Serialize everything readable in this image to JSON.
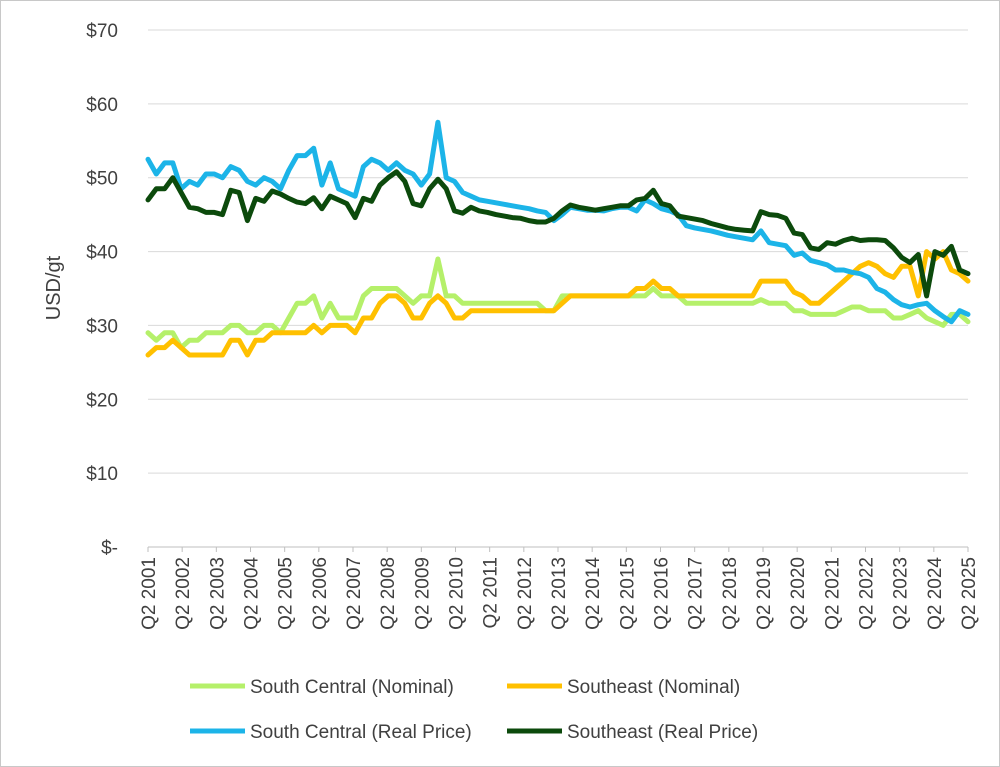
{
  "chart_data": {
    "type": "line",
    "title": "",
    "xlabel": "",
    "ylabel": "USD/gt",
    "ylim": [
      0,
      70
    ],
    "yticks": [
      {
        "value": 0,
        "label": "$-"
      },
      {
        "value": 10,
        "label": "$10"
      },
      {
        "value": 20,
        "label": "$20"
      },
      {
        "value": 30,
        "label": "$30"
      },
      {
        "value": 40,
        "label": "$40"
      },
      {
        "value": 50,
        "label": "$50"
      },
      {
        "value": 60,
        "label": "$60"
      },
      {
        "value": 70,
        "label": "$70"
      }
    ],
    "xtick_labels": [
      "Q2 2001",
      "Q2 2002",
      "Q2 2003",
      "Q2 2004",
      "Q2 2005",
      "Q2 2006",
      "Q2 2007",
      "Q2 2008",
      "Q2 2009",
      "Q2 2010",
      "Q2 2011",
      "Q2 2012",
      "Q2 2013",
      "Q2 2014",
      "Q2 2015",
      "Q2 2016",
      "Q2 2017",
      "Q2 2018",
      "Q2 2019",
      "Q2 2020",
      "Q2 2021",
      "Q2 2022",
      "Q2 2023",
      "Q2 2024",
      "Q2 2025"
    ],
    "x_start": "Q2 2001",
    "x_end": "Q2 2025",
    "grid": true,
    "legend_position": "bottom",
    "series": [
      {
        "name": "South Central (Nominal)",
        "color": "#b5f06a",
        "values": [
          29.0,
          28.0,
          29.0,
          29.0,
          27.0,
          28.0,
          28.0,
          29.0,
          29.0,
          29.0,
          30.0,
          30.0,
          29.0,
          29.0,
          30.0,
          30.0,
          29.0,
          31.0,
          33.0,
          33.0,
          34.0,
          31.0,
          33.0,
          31.0,
          31.0,
          31.0,
          34.0,
          35.0,
          35.0,
          35.0,
          35.0,
          34.0,
          33.0,
          34.0,
          34.0,
          39.0,
          34.0,
          34.0,
          33.0,
          33.0,
          33.0,
          33.0,
          33.0,
          33.0,
          33.0,
          33.0,
          33.0,
          33.0,
          32.0,
          32.0,
          34.0,
          34.0,
          34.0,
          34.0,
          34.0,
          34.0,
          34.0,
          34.0,
          34.0,
          34.0,
          34.0,
          35.0,
          34.0,
          34.0,
          34.0,
          33.0,
          33.0,
          33.0,
          33.0,
          33.0,
          33.0,
          33.0,
          33.0,
          33.0,
          33.5,
          33.0,
          33.0,
          33.0,
          32.0,
          32.0,
          31.5,
          31.5,
          31.5,
          31.5,
          32.0,
          32.5,
          32.5,
          32.0,
          32.0,
          32.0,
          31.0,
          31.0,
          31.5,
          32.0,
          31.0,
          30.5,
          30.0,
          31.5,
          31.5,
          30.5
        ]
      },
      {
        "name": "Southeast (Nominal)",
        "color": "#ffc000",
        "values": [
          26.0,
          27.0,
          27.0,
          28.0,
          27.0,
          26.0,
          26.0,
          26.0,
          26.0,
          26.0,
          28.0,
          28.0,
          26.0,
          28.0,
          28.0,
          29.0,
          29.0,
          29.0,
          29.0,
          29.0,
          30.0,
          29.0,
          30.0,
          30.0,
          30.0,
          29.0,
          31.0,
          31.0,
          33.0,
          34.0,
          34.0,
          33.0,
          31.0,
          31.0,
          33.0,
          34.0,
          33.0,
          31.0,
          31.0,
          32.0,
          32.0,
          32.0,
          32.0,
          32.0,
          32.0,
          32.0,
          32.0,
          32.0,
          32.0,
          32.0,
          33.0,
          34.0,
          34.0,
          34.0,
          34.0,
          34.0,
          34.0,
          34.0,
          34.0,
          35.0,
          35.0,
          36.0,
          35.0,
          35.0,
          34.0,
          34.0,
          34.0,
          34.0,
          34.0,
          34.0,
          34.0,
          34.0,
          34.0,
          34.0,
          36.0,
          36.0,
          36.0,
          36.0,
          34.5,
          34.0,
          33.0,
          33.0,
          34.0,
          35.0,
          36.0,
          37.0,
          38.0,
          38.5,
          38.0,
          37.0,
          36.5,
          38.0,
          38.0,
          34.0,
          40.0,
          39.0,
          40.0,
          37.5,
          37.0,
          36.0
        ]
      },
      {
        "name": "South Central (Real Price)",
        "color": "#1cb4e8",
        "values": [
          52.5,
          50.5,
          52.0,
          52.0,
          48.5,
          49.5,
          49.0,
          50.5,
          50.5,
          50.0,
          51.5,
          51.0,
          49.5,
          49.0,
          50.0,
          49.5,
          48.5,
          51.0,
          53.0,
          53.0,
          54.0,
          49.0,
          52.0,
          48.5,
          48.0,
          47.5,
          51.5,
          52.5,
          52.0,
          51.0,
          52.0,
          51.0,
          50.5,
          49.0,
          50.5,
          57.5,
          50.0,
          49.5,
          48.0,
          47.5,
          47.0,
          46.8,
          46.6,
          46.4,
          46.2,
          46.0,
          45.8,
          45.5,
          45.3,
          44.2,
          45.0,
          46.0,
          45.8,
          45.6,
          45.6,
          45.5,
          45.8,
          46.0,
          46.0,
          45.5,
          47.0,
          46.5,
          45.8,
          45.5,
          45.0,
          43.5,
          43.2,
          43.0,
          42.8,
          42.5,
          42.2,
          42.0,
          41.8,
          41.6,
          42.8,
          41.2,
          41.0,
          40.8,
          39.5,
          39.8,
          38.8,
          38.5,
          38.2,
          37.5,
          37.5,
          37.2,
          37.0,
          36.5,
          35.0,
          34.5,
          33.5,
          32.8,
          32.5,
          32.8,
          33.0,
          32.0,
          31.2,
          30.5,
          32.0,
          31.5
        ]
      },
      {
        "name": "Southeast (Real Price)",
        "color": "#0c4a0c",
        "values": [
          47.0,
          48.5,
          48.5,
          50.0,
          48.0,
          46.0,
          45.8,
          45.3,
          45.3,
          45.0,
          48.3,
          48.0,
          44.2,
          47.2,
          46.8,
          48.2,
          47.8,
          47.2,
          46.7,
          46.5,
          47.3,
          45.8,
          47.5,
          47.0,
          46.5,
          44.6,
          47.2,
          46.8,
          49.0,
          50.0,
          50.8,
          49.5,
          46.5,
          46.2,
          48.5,
          49.8,
          48.5,
          45.5,
          45.2,
          46.0,
          45.5,
          45.3,
          45.0,
          44.8,
          44.6,
          44.5,
          44.2,
          44.0,
          44.0,
          44.5,
          45.5,
          46.3,
          46.0,
          45.8,
          45.6,
          45.8,
          46.0,
          46.2,
          46.2,
          47.0,
          47.2,
          48.3,
          46.5,
          46.2,
          44.8,
          44.6,
          44.4,
          44.2,
          43.8,
          43.5,
          43.2,
          43.0,
          42.9,
          42.8,
          45.4,
          45.0,
          44.9,
          44.5,
          42.5,
          42.3,
          40.5,
          40.3,
          41.2,
          41.0,
          41.5,
          41.8,
          41.5,
          41.6,
          41.6,
          41.5,
          40.5,
          39.2,
          38.5,
          39.6,
          34.0,
          40.0,
          39.5,
          40.7,
          37.5,
          37.0
        ]
      }
    ]
  }
}
